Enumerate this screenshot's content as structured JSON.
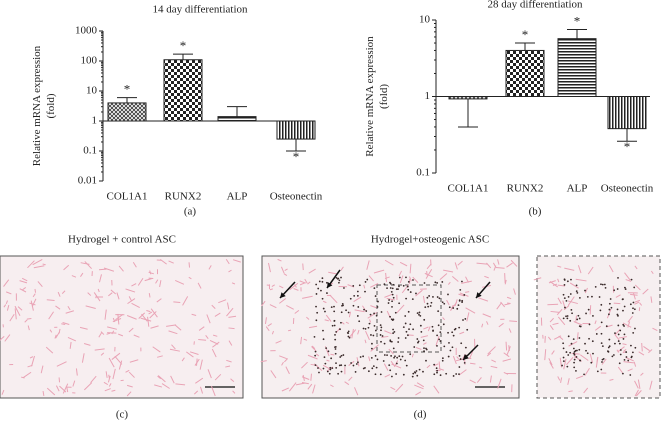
{
  "chart_data": [
    {
      "type": "bar",
      "title": "14 day differentiation",
      "ylabel": [
        "Relative mRNA expression",
        "(fold)"
      ],
      "categories": [
        "COL1A1",
        "RUNX2",
        "ALP",
        "Osteonectin"
      ],
      "values": [
        4,
        110,
        1.4,
        0.25
      ],
      "errors": [
        2,
        60,
        1.6,
        0.15
      ],
      "annotations": [
        {
          "text": "*",
          "category": 0
        },
        {
          "text": "*",
          "category": 1
        },
        {
          "text": "*",
          "category": 3
        }
      ],
      "log_scale": true,
      "baseline": 1,
      "ylim": [
        0.01,
        1000
      ],
      "yticks": [
        0.01,
        0.1,
        1,
        10,
        100,
        1000
      ],
      "panel_label": "(a)"
    },
    {
      "type": "bar",
      "title": "28 day differentiation",
      "ylabel": [
        "Relative mRNA expression",
        "(fold)"
      ],
      "categories": [
        "COL1A1",
        "RUNX2",
        "ALP",
        "Osteonectin"
      ],
      "values": [
        0.93,
        4,
        5.7,
        0.38
      ],
      "errors": [
        0.53,
        1,
        1.8,
        0.12
      ],
      "annotations": [
        {
          "text": "*",
          "category": 1
        },
        {
          "text": "*",
          "category": 2
        },
        {
          "text": "*",
          "category": 3
        }
      ],
      "log_scale": true,
      "baseline": 1,
      "ylim": [
        0.1,
        10
      ],
      "yticks": [
        0.1,
        1,
        10
      ],
      "panel_label": "(b)"
    }
  ],
  "images": [
    {
      "title": "Hydrogel + control ASC",
      "panel_label": "(c)"
    },
    {
      "title": "Hydrogel+osteogenic ASC",
      "panel_label": "(d)"
    }
  ]
}
